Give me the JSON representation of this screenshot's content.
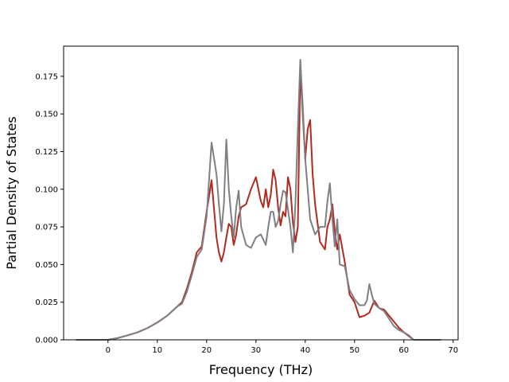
{
  "chart_data": {
    "type": "line",
    "title": "",
    "xlabel": "Frequency (THz)",
    "ylabel": "Partial Density of States",
    "xlim": [
      -9,
      71
    ],
    "ylim": [
      0,
      0.195
    ],
    "grid": false,
    "x_ticks": [
      0,
      10,
      20,
      30,
      40,
      50,
      60,
      70
    ],
    "y_ticks": [
      0.0,
      0.025,
      0.05,
      0.075,
      0.1,
      0.125,
      0.15,
      0.175
    ],
    "x_tick_labels": [
      "0",
      "10",
      "20",
      "30",
      "40",
      "50",
      "60",
      "70"
    ],
    "y_tick_labels": [
      "0.000",
      "0.025",
      "0.050",
      "0.075",
      "0.100",
      "0.125",
      "0.150",
      "0.175"
    ],
    "series": [
      {
        "color": "#b22a1e",
        "x": [
          -6.5,
          0,
          2,
          4,
          6,
          8,
          10,
          12,
          14,
          15,
          16,
          17,
          18,
          19,
          20,
          21,
          22,
          22.5,
          23,
          23.5,
          24,
          24.5,
          25,
          25.5,
          26,
          26.5,
          27,
          28,
          29,
          30,
          31,
          31.5,
          32,
          32.5,
          33,
          33.5,
          34,
          34.5,
          35,
          35.5,
          36,
          36.5,
          37,
          37.5,
          38,
          38.5,
          39,
          39.5,
          40,
          40.5,
          41,
          41.5,
          42,
          43,
          44,
          44.5,
          45,
          45.5,
          46,
          46.5,
          47,
          48,
          49,
          50,
          51,
          52,
          53,
          54,
          55,
          56,
          57,
          58,
          59,
          60,
          61,
          62,
          67.5
        ],
        "y": [
          0.0,
          0.0,
          0.0012,
          0.003,
          0.005,
          0.0078,
          0.0115,
          0.016,
          0.022,
          0.025,
          0.034,
          0.045,
          0.058,
          0.062,
          0.085,
          0.106,
          0.068,
          0.058,
          0.052,
          0.058,
          0.068,
          0.077,
          0.075,
          0.063,
          0.07,
          0.082,
          0.088,
          0.09,
          0.1,
          0.108,
          0.092,
          0.088,
          0.1,
          0.088,
          0.096,
          0.113,
          0.106,
          0.088,
          0.076,
          0.085,
          0.082,
          0.108,
          0.1,
          0.078,
          0.065,
          0.075,
          0.18,
          0.15,
          0.12,
          0.14,
          0.146,
          0.11,
          0.09,
          0.065,
          0.06,
          0.075,
          0.08,
          0.09,
          0.072,
          0.06,
          0.07,
          0.052,
          0.03,
          0.025,
          0.015,
          0.016,
          0.018,
          0.026,
          0.021,
          0.02,
          0.016,
          0.012,
          0.008,
          0.005,
          0.0025,
          0.0,
          0.0
        ]
      },
      {
        "color": "#7f7f85",
        "x": [
          -6.5,
          0,
          2,
          4,
          6,
          8,
          10,
          12,
          14,
          15,
          16,
          17,
          18,
          19,
          20,
          21,
          22,
          22.5,
          23,
          23.5,
          24,
          24.5,
          25,
          25.5,
          26,
          26.5,
          27,
          28,
          29,
          30,
          31,
          32,
          32.5,
          33,
          33.5,
          34,
          34.5,
          35,
          35.5,
          36,
          37,
          37.5,
          38,
          38.5,
          39,
          39.5,
          40,
          40.5,
          41,
          42,
          43,
          44,
          44.5,
          45,
          45.5,
          46,
          46.5,
          47,
          48,
          49,
          50,
          51,
          52,
          52.5,
          53,
          53.5,
          54,
          55,
          56,
          57,
          58,
          59,
          60,
          61,
          62,
          67.5
        ],
        "y": [
          0.0,
          0.0,
          0.0012,
          0.003,
          0.005,
          0.0078,
          0.0115,
          0.016,
          0.022,
          0.024,
          0.032,
          0.043,
          0.055,
          0.06,
          0.082,
          0.131,
          0.11,
          0.09,
          0.072,
          0.09,
          0.133,
          0.1,
          0.082,
          0.068,
          0.088,
          0.099,
          0.075,
          0.063,
          0.061,
          0.068,
          0.07,
          0.063,
          0.075,
          0.085,
          0.085,
          0.075,
          0.079,
          0.09,
          0.099,
          0.098,
          0.075,
          0.058,
          0.09,
          0.14,
          0.186,
          0.155,
          0.12,
          0.1,
          0.08,
          0.07,
          0.075,
          0.075,
          0.092,
          0.104,
          0.08,
          0.062,
          0.08,
          0.05,
          0.049,
          0.033,
          0.027,
          0.023,
          0.023,
          0.026,
          0.037,
          0.03,
          0.024,
          0.021,
          0.019,
          0.014,
          0.009,
          0.0065,
          0.005,
          0.003,
          0.0,
          0.0
        ]
      }
    ]
  }
}
